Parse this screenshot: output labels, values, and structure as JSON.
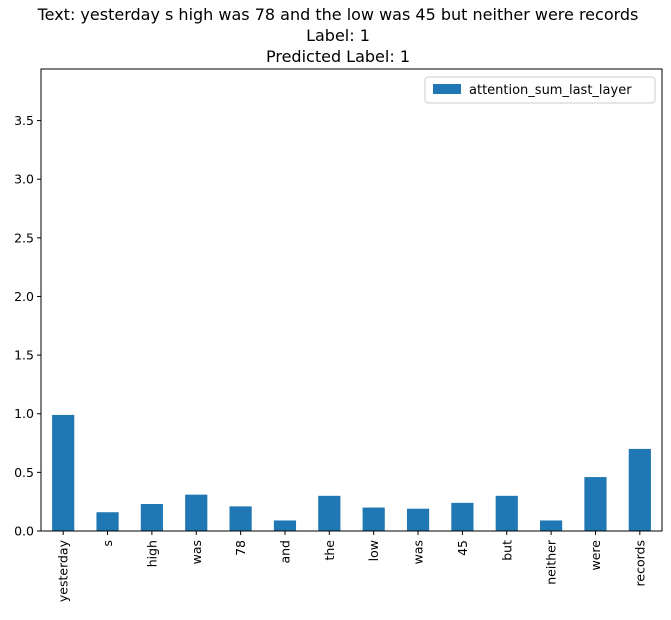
{
  "chart_data": {
    "type": "bar",
    "title_lines": [
      "Text: yesterday s high was 78 and the low was 45 but neither were records",
      "Label: 1",
      "Predicted Label: 1"
    ],
    "categories": [
      "yesterday",
      "s",
      "high",
      "was",
      "78",
      "and",
      "the",
      "low",
      "was",
      "45",
      "but",
      "neither",
      "were",
      "records"
    ],
    "series": [
      {
        "name": "attention_sum_last_layer",
        "values": [
          0.99,
          0.16,
          0.23,
          0.31,
          0.21,
          0.09,
          0.3,
          0.2,
          0.19,
          0.24,
          0.3,
          0.09,
          0.46,
          0.7
        ]
      }
    ],
    "yticks": [
      0.0,
      0.5,
      1.0,
      1.5,
      2.0,
      2.5,
      3.0,
      3.5
    ],
    "ytick_labels": [
      "0.0",
      "0.5",
      "1.0",
      "1.5",
      "2.0",
      "2.5",
      "3.0",
      "3.5"
    ],
    "ylim": [
      0,
      3.94
    ],
    "xlabel": "",
    "ylabel": "",
    "legend_position": "top-right",
    "grid": false,
    "bar_color": "#1f77b4"
  }
}
